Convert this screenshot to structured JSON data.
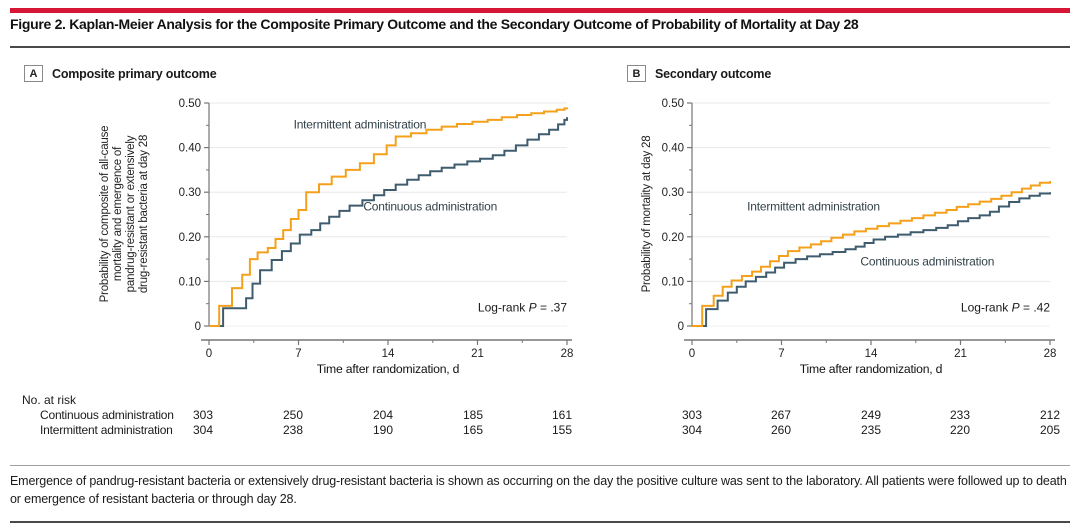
{
  "title": "Figure 2. Kaplan-Meier Analysis for the Composite Primary Outcome and the Secondary Outcome of Probability of Mortality at Day 28",
  "colors": {
    "accent_red": "#D71635",
    "intermittent": "#F5A01B",
    "continuous": "#3E5C6E",
    "grid": "#E8E8E8",
    "axis": "#767676"
  },
  "panels": [
    {
      "tag": "A",
      "heading": "Composite primary outcome",
      "ylabel_lines": [
        "Probability of composite of all-cause",
        "mortality and emergence of",
        "pandrug-resistant or extensively",
        "drug-resistant bacteria at day 28"
      ]
    },
    {
      "tag": "B",
      "heading": "Secondary outcome",
      "ylabel_lines": [
        "Probability of mortality at day 28"
      ]
    }
  ],
  "chart_data": [
    {
      "type": "line",
      "step": true,
      "title": "Composite primary outcome",
      "xlabel": "Time after randomization, d",
      "ylabel": "Probability of composite of all-cause mortality and emergence of pandrug-resistant or extensively drug-resistant bacteria at day 28",
      "xlim": [
        0,
        28
      ],
      "ylim": [
        0,
        0.5
      ],
      "xticks": [
        0,
        7,
        14,
        21,
        28
      ],
      "xticks_minor": [
        3.5,
        10.5,
        17.5,
        24.5
      ],
      "yticks": [
        0,
        0.1,
        0.2,
        0.3,
        0.4,
        0.5
      ],
      "ytick_labels": [
        "0",
        "0.10",
        "0.20",
        "0.30",
        "0.40",
        "0.50"
      ],
      "grid": true,
      "annotation": {
        "text": "Log-rank P = .37",
        "prefix": "Log-rank ",
        "italic": "P",
        "suffix": " = .37",
        "x": 28,
        "y": 0.032
      },
      "series_labels": [
        {
          "text": "Intermittent administration",
          "x": 11.8,
          "y": 0.452
        },
        {
          "text": "Continuous administration",
          "x": 17.3,
          "y": 0.268
        }
      ],
      "series": [
        {
          "name": "Intermittent administration",
          "color": "#F5A01B",
          "x": [
            0,
            0.8,
            1.8,
            2.6,
            3.2,
            3.8,
            4.6,
            5.2,
            5.8,
            6.4,
            7.0,
            7.6,
            8.6,
            9.6,
            10.7,
            11.8,
            12.9,
            13.9,
            14.6,
            15.8,
            17.0,
            18.2,
            19.4,
            20.6,
            21.8,
            22.9,
            24.1,
            25.2,
            26.2,
            27.2,
            27.8,
            28
          ],
          "y": [
            0,
            0.045,
            0.085,
            0.115,
            0.15,
            0.165,
            0.175,
            0.195,
            0.215,
            0.24,
            0.26,
            0.3,
            0.318,
            0.335,
            0.35,
            0.365,
            0.385,
            0.405,
            0.425,
            0.432,
            0.44,
            0.447,
            0.453,
            0.458,
            0.462,
            0.468,
            0.473,
            0.477,
            0.481,
            0.485,
            0.488,
            0.49
          ]
        },
        {
          "name": "Continuous administration",
          "color": "#3E5C6E",
          "x": [
            0,
            1.1,
            2.9,
            3.4,
            4.0,
            4.9,
            5.7,
            6.4,
            7.1,
            8.0,
            8.7,
            9.4,
            10.2,
            11.0,
            12.0,
            12.9,
            13.7,
            14.6,
            15.5,
            16.4,
            17.3,
            18.2,
            19.2,
            20.2,
            21.2,
            22.2,
            23.1,
            24.0,
            24.9,
            25.8,
            26.6,
            27.3,
            27.8,
            28
          ],
          "y": [
            0,
            0.04,
            0.062,
            0.095,
            0.125,
            0.148,
            0.168,
            0.185,
            0.205,
            0.215,
            0.23,
            0.245,
            0.258,
            0.27,
            0.282,
            0.293,
            0.305,
            0.317,
            0.328,
            0.338,
            0.347,
            0.355,
            0.362,
            0.369,
            0.375,
            0.383,
            0.393,
            0.405,
            0.418,
            0.43,
            0.44,
            0.452,
            0.462,
            0.468
          ]
        }
      ]
    },
    {
      "type": "line",
      "step": true,
      "title": "Secondary outcome",
      "xlabel": "Time after randomization, d",
      "ylabel": "Probability of mortality at day 28",
      "xlim": [
        0,
        28
      ],
      "ylim": [
        0,
        0.5
      ],
      "xticks": [
        0,
        7,
        14,
        21,
        28
      ],
      "xticks_minor": [
        3.5,
        10.5,
        17.5,
        24.5
      ],
      "yticks": [
        0,
        0.1,
        0.2,
        0.3,
        0.4,
        0.5
      ],
      "ytick_labels": [
        "0",
        "0.10",
        "0.20",
        "0.30",
        "0.40",
        "0.50"
      ],
      "grid": true,
      "annotation": {
        "text": "Log-rank P = .42",
        "prefix": "Log-rank ",
        "italic": "P",
        "suffix": " = .42",
        "x": 28,
        "y": 0.032
      },
      "series_labels": [
        {
          "text": "Intermittent administration",
          "x": 9.5,
          "y": 0.268
        },
        {
          "text": "Continuous administration",
          "x": 18.4,
          "y": 0.145
        }
      ],
      "series": [
        {
          "name": "Intermittent administration",
          "color": "#F5A01B",
          "x": [
            0,
            0.8,
            1.7,
            2.4,
            3.1,
            3.9,
            4.7,
            5.4,
            6.1,
            6.8,
            7.5,
            8.4,
            9.3,
            10.1,
            10.9,
            11.8,
            12.7,
            13.6,
            14.5,
            15.4,
            16.3,
            17.2,
            18.1,
            19.0,
            19.9,
            20.7,
            21.6,
            22.5,
            23.4,
            24.2,
            25.0,
            25.8,
            26.5,
            27.2,
            28
          ],
          "y": [
            0,
            0.045,
            0.068,
            0.088,
            0.102,
            0.112,
            0.122,
            0.133,
            0.145,
            0.157,
            0.168,
            0.176,
            0.183,
            0.19,
            0.198,
            0.205,
            0.212,
            0.218,
            0.224,
            0.23,
            0.236,
            0.242,
            0.248,
            0.254,
            0.26,
            0.267,
            0.273,
            0.279,
            0.285,
            0.292,
            0.3,
            0.308,
            0.315,
            0.321,
            0.325
          ]
        },
        {
          "name": "Continuous administration",
          "color": "#3E5C6E",
          "x": [
            0,
            1.1,
            2.0,
            2.8,
            3.5,
            4.2,
            5.0,
            5.8,
            6.5,
            7.2,
            8.1,
            9.0,
            10.0,
            11.0,
            12.0,
            12.8,
            13.5,
            14.2,
            15.1,
            16.1,
            17.1,
            18.1,
            19.1,
            20.0,
            20.8,
            21.6,
            22.5,
            23.3,
            24.0,
            24.8,
            25.6,
            26.4,
            27.2,
            28
          ],
          "y": [
            0,
            0.038,
            0.057,
            0.075,
            0.088,
            0.1,
            0.11,
            0.12,
            0.131,
            0.142,
            0.15,
            0.156,
            0.161,
            0.166,
            0.172,
            0.178,
            0.186,
            0.194,
            0.2,
            0.205,
            0.21,
            0.215,
            0.22,
            0.226,
            0.235,
            0.242,
            0.248,
            0.256,
            0.268,
            0.278,
            0.286,
            0.292,
            0.297,
            0.3
          ]
        }
      ]
    }
  ],
  "risk_table": {
    "heading": "No. at risk",
    "timepoints": [
      0,
      7,
      14,
      21,
      28
    ],
    "rows": [
      {
        "label": "Continuous administration",
        "panelA": [
          303,
          250,
          204,
          185,
          161
        ],
        "panelB": [
          303,
          267,
          249,
          233,
          212
        ]
      },
      {
        "label": "Intermittent administration",
        "panelA": [
          304,
          238,
          190,
          165,
          155
        ],
        "panelB": [
          304,
          260,
          235,
          220,
          205
        ]
      }
    ]
  },
  "footnote": "Emergence of pandrug-resistant bacteria or extensively drug-resistant bacteria is shown as occurring on the day the positive culture was sent to the laboratory. All patients were followed up to death or emergence of resistant bacteria or through day 28."
}
